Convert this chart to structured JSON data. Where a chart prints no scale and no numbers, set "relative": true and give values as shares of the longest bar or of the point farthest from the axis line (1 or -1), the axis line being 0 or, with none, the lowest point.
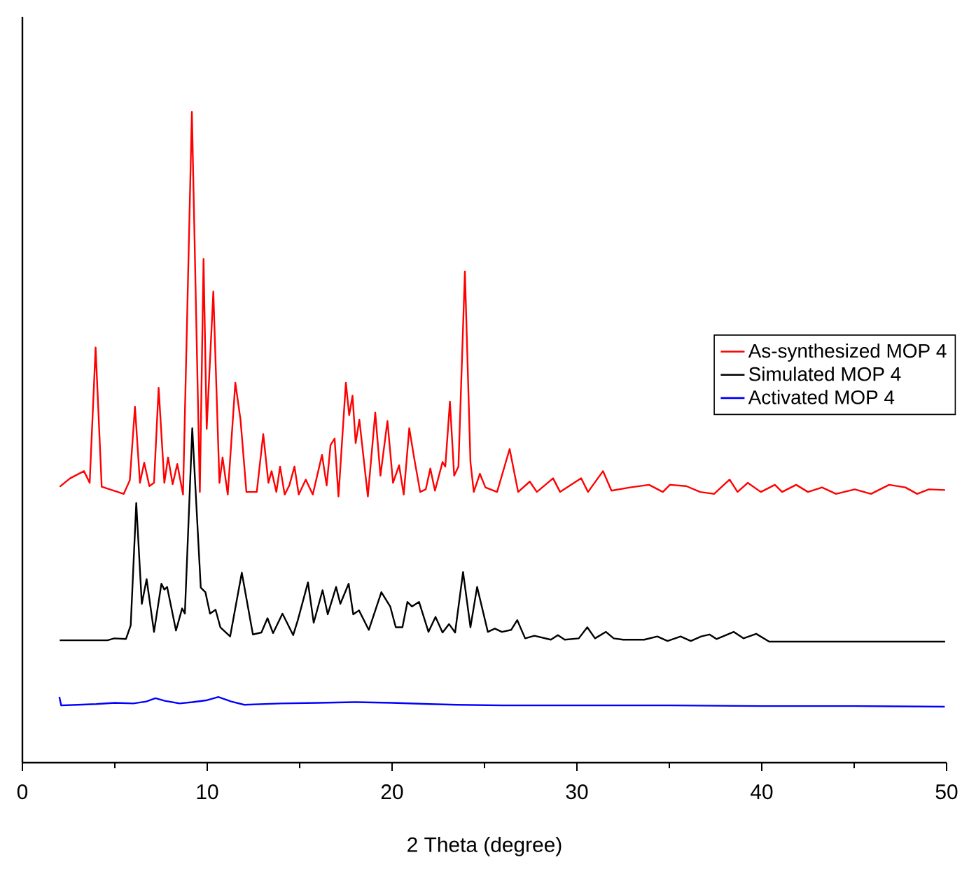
{
  "chart_data": {
    "type": "line",
    "relative": true,
    "xlabel": "2 Theta (degree)",
    "xlim": [
      0,
      50
    ],
    "xticks": [
      0,
      10,
      20,
      30,
      40,
      50
    ],
    "legend": "right",
    "grid": false,
    "marker": "none",
    "line_style": "solid",
    "series": [
      {
        "name": "As-synthesized MOP 4",
        "color": "#ff0000",
        "x": [
          2.02,
          2.58,
          3.33,
          3.64,
          3.96,
          4.29,
          5.48,
          5.81,
          6.09,
          6.36,
          6.59,
          6.87,
          7.12,
          7.37,
          7.68,
          7.88,
          8.13,
          8.38,
          8.69,
          9.17,
          9.6,
          9.8,
          9.97,
          10.33,
          10.66,
          10.83,
          11.11,
          11.52,
          11.8,
          12.12,
          12.68,
          13.03,
          13.31,
          13.48,
          13.74,
          13.94,
          14.19,
          14.44,
          14.72,
          14.95,
          15.33,
          15.71,
          16.21,
          16.46,
          16.67,
          16.89,
          17.1,
          17.5,
          17.68,
          17.86,
          18.03,
          18.23,
          18.69,
          19.09,
          19.37,
          19.75,
          20.05,
          20.38,
          20.63,
          20.93,
          21.19,
          21.52,
          21.82,
          22.07,
          22.32,
          22.73,
          22.88,
          23.13,
          23.36,
          23.59,
          23.94,
          24.24,
          24.42,
          24.75,
          25.05,
          25.68,
          26.36,
          26.82,
          27.45,
          27.83,
          28.71,
          29.09,
          30.23,
          30.6,
          31.41,
          31.87,
          32.88,
          33.9,
          34.65,
          35.03,
          35.91,
          36.67,
          37.42,
          38.26,
          38.69,
          39.24,
          39.95,
          40.71,
          41.1,
          41.86,
          42.5,
          43.26,
          44.02,
          45.03,
          45.91,
          46.89,
          47.77,
          48.41,
          49.04,
          49.92
        ],
        "values": [
          0.424,
          0.437,
          0.448,
          0.43,
          0.638,
          0.424,
          0.413,
          0.434,
          0.547,
          0.43,
          0.461,
          0.425,
          0.43,
          0.576,
          0.43,
          0.469,
          0.428,
          0.459,
          0.412,
          1.0,
          0.416,
          0.774,
          0.513,
          0.724,
          0.43,
          0.469,
          0.412,
          0.584,
          0.527,
          0.416,
          0.416,
          0.505,
          0.43,
          0.448,
          0.416,
          0.455,
          0.412,
          0.426,
          0.455,
          0.412,
          0.435,
          0.412,
          0.473,
          0.426,
          0.488,
          0.498,
          0.409,
          0.584,
          0.534,
          0.564,
          0.491,
          0.527,
          0.409,
          0.538,
          0.441,
          0.525,
          0.43,
          0.457,
          0.412,
          0.514,
          0.469,
          0.416,
          0.42,
          0.452,
          0.418,
          0.462,
          0.455,
          0.555,
          0.441,
          0.455,
          0.755,
          0.462,
          0.416,
          0.444,
          0.423,
          0.416,
          0.482,
          0.416,
          0.432,
          0.416,
          0.437,
          0.416,
          0.437,
          0.416,
          0.448,
          0.418,
          0.423,
          0.427,
          0.416,
          0.427,
          0.425,
          0.416,
          0.413,
          0.435,
          0.416,
          0.43,
          0.416,
          0.427,
          0.416,
          0.427,
          0.416,
          0.423,
          0.413,
          0.42,
          0.413,
          0.427,
          0.423,
          0.413,
          0.42,
          0.419
        ]
      },
      {
        "name": "Simulated MOP 4",
        "color": "#000000",
        "x": [
          2.02,
          4.6,
          4.97,
          5.6,
          5.86,
          6.16,
          6.46,
          6.72,
          7.12,
          7.52,
          7.68,
          7.83,
          8.31,
          8.64,
          8.79,
          9.19,
          9.65,
          9.9,
          10.15,
          10.45,
          10.71,
          11.24,
          11.87,
          12.47,
          12.93,
          13.26,
          13.56,
          14.07,
          14.65,
          14.9,
          15.45,
          15.76,
          16.24,
          16.52,
          16.97,
          17.2,
          17.65,
          17.9,
          18.21,
          18.74,
          19.42,
          19.9,
          20.2,
          20.56,
          20.83,
          21.08,
          21.46,
          21.97,
          22.35,
          22.73,
          23.08,
          23.41,
          23.84,
          24.24,
          24.6,
          25.18,
          25.56,
          25.94,
          26.44,
          26.77,
          27.2,
          27.7,
          28.59,
          28.97,
          29.34,
          30.1,
          30.56,
          30.98,
          31.57,
          31.99,
          32.5,
          33.64,
          34.35,
          34.9,
          35.61,
          36.16,
          36.72,
          37.17,
          37.55,
          38.48,
          39.01,
          39.7,
          40.4,
          49.92
        ],
        "values": [
          0.188,
          0.188,
          0.191,
          0.19,
          0.211,
          0.399,
          0.244,
          0.282,
          0.201,
          0.275,
          0.266,
          0.27,
          0.203,
          0.237,
          0.229,
          0.514,
          0.269,
          0.262,
          0.229,
          0.235,
          0.208,
          0.194,
          0.292,
          0.197,
          0.2,
          0.222,
          0.199,
          0.229,
          0.196,
          0.219,
          0.277,
          0.215,
          0.265,
          0.228,
          0.27,
          0.244,
          0.275,
          0.228,
          0.234,
          0.204,
          0.262,
          0.24,
          0.208,
          0.208,
          0.247,
          0.24,
          0.247,
          0.201,
          0.224,
          0.2,
          0.213,
          0.2,
          0.293,
          0.208,
          0.27,
          0.201,
          0.206,
          0.201,
          0.204,
          0.219,
          0.191,
          0.195,
          0.189,
          0.196,
          0.189,
          0.191,
          0.208,
          0.191,
          0.201,
          0.191,
          0.189,
          0.189,
          0.194,
          0.187,
          0.194,
          0.187,
          0.194,
          0.197,
          0.19,
          0.201,
          0.191,
          0.198,
          0.186,
          0.186
        ]
      },
      {
        "name": "Activated MOP 4",
        "color": "#0000ff",
        "x": [
          2.0,
          2.1,
          3,
          4,
          5,
          6,
          6.7,
          7.2,
          7.7,
          8.5,
          9.2,
          10,
          10.6,
          11.3,
          12,
          14,
          16,
          18,
          20,
          22,
          23.5,
          26,
          30,
          35,
          40,
          45,
          49.9
        ],
        "values": [
          0.101,
          0.088,
          0.089,
          0.09,
          0.092,
          0.091,
          0.094,
          0.099,
          0.095,
          0.091,
          0.093,
          0.096,
          0.101,
          0.094,
          0.089,
          0.091,
          0.092,
          0.093,
          0.092,
          0.09,
          0.089,
          0.088,
          0.088,
          0.088,
          0.087,
          0.087,
          0.086
        ]
      }
    ]
  }
}
